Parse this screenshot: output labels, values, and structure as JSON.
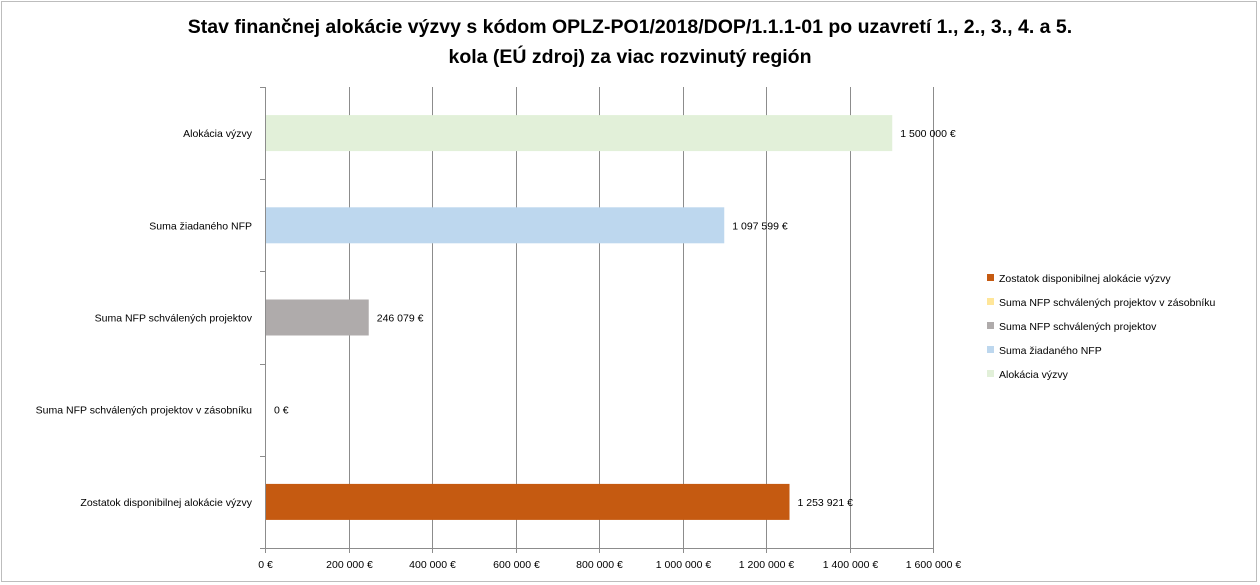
{
  "chart_data": {
    "type": "bar",
    "orientation": "horizontal",
    "title_line1": "Stav finančnej alokácie výzvy s kódom OPLZ-PO1/2018/DOP/1.1.1-01 po uzavretí 1., 2., 3., 4. a 5.",
    "title_line2": "kola (EÚ zdroj) za viac rozvinutý región",
    "categories": [
      "Alokácia výzvy",
      "Suma žiadaného NFP",
      "Suma NFP schválených projektov",
      "Suma NFP schválených projektov v zásobníku",
      "Zostatok disponibilnej alokácie výzvy"
    ],
    "values": [
      1500000,
      1097599,
      246079,
      0,
      1253921
    ],
    "value_labels": [
      "1 500 000 €",
      "1 097 599 €",
      "246 079 €",
      "0 €",
      "1 253 921 €"
    ],
    "colors": [
      "#e2f0d9",
      "#bdd7ee",
      "#afabab",
      "#ffe699",
      "#c55a11"
    ],
    "xlim": [
      0,
      1600000
    ],
    "x_ticks": [
      0,
      200000,
      400000,
      600000,
      800000,
      1000000,
      1200000,
      1400000,
      1600000
    ],
    "x_tick_labels": [
      "0 €",
      "200 000 €",
      "400 000 €",
      "600 000 €",
      "800 000 €",
      "1 000 000 €",
      "1 200 000 €",
      "1 400 000 €",
      "1 600 000 €"
    ],
    "grid": true,
    "legend_position": "right",
    "legend": [
      {
        "label": "Zostatok disponibilnej alokácie výzvy",
        "color": "#c55a11"
      },
      {
        "label": "Suma NFP schválených projektov v zásobníku",
        "color": "#ffe699"
      },
      {
        "label": "Suma NFP schválených projektov",
        "color": "#afabab"
      },
      {
        "label": "Suma žiadaného NFP",
        "color": "#bdd7ee"
      },
      {
        "label": "Alokácia výzvy",
        "color": "#e2f0d9"
      }
    ]
  }
}
